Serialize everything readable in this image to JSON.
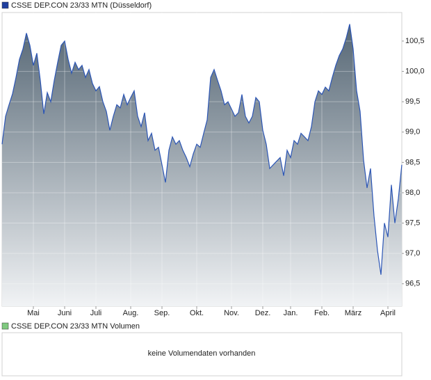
{
  "chart_data": [
    {
      "type": "area",
      "title": "CSSE DEP.CON 23/33 MTN (Düsseldorf)",
      "legend_color": "#1f3f9f",
      "color": "#2b55b5",
      "fill_top": "#566775",
      "fill_bottom": "#f1f3f5",
      "grid": true,
      "values": [
        98.8,
        99.26,
        99.45,
        99.63,
        99.9,
        100.2,
        100.37,
        100.63,
        100.43,
        100.1,
        100.3,
        99.85,
        99.3,
        99.65,
        99.5,
        99.85,
        100.15,
        100.43,
        100.5,
        100.2,
        99.97,
        100.15,
        100.03,
        100.1,
        99.9,
        100.03,
        99.8,
        99.68,
        99.75,
        99.5,
        99.34,
        99.03,
        99.26,
        99.45,
        99.4,
        99.62,
        99.45,
        99.57,
        99.68,
        99.26,
        99.09,
        99.32,
        98.86,
        98.98,
        98.7,
        98.75,
        98.46,
        98.17,
        98.7,
        98.92,
        98.8,
        98.86,
        98.7,
        98.58,
        98.43,
        98.64,
        98.8,
        98.75,
        98.98,
        99.2,
        99.9,
        100.03,
        99.85,
        99.68,
        99.45,
        99.5,
        99.38,
        99.26,
        99.32,
        99.62,
        99.26,
        99.15,
        99.26,
        99.57,
        99.5,
        99.03,
        98.8,
        98.4,
        98.46,
        98.52,
        98.58,
        98.28,
        98.7,
        98.58,
        98.86,
        98.8,
        98.98,
        98.92,
        98.86,
        99.09,
        99.5,
        99.68,
        99.62,
        99.74,
        99.68,
        99.9,
        100.1,
        100.26,
        100.37,
        100.55,
        100.78,
        100.37,
        99.68,
        99.34,
        98.54,
        98.08,
        98.4,
        97.62,
        97.05,
        96.65,
        97.5,
        97.27,
        98.13,
        97.5,
        97.9,
        98.46
      ],
      "xlim": [
        0,
        115
      ],
      "xticks": [
        {
          "value": 9,
          "label": "Mai"
        },
        {
          "value": 18,
          "label": "Juni"
        },
        {
          "value": 27,
          "label": "Juli"
        },
        {
          "value": 37,
          "label": "Aug."
        },
        {
          "value": 46,
          "label": "Sep."
        },
        {
          "value": 56,
          "label": "Okt."
        },
        {
          "value": 66,
          "label": "Nov."
        },
        {
          "value": 75,
          "label": "Dez."
        },
        {
          "value": 83,
          "label": "Jan."
        },
        {
          "value": 92,
          "label": "Feb."
        },
        {
          "value": 101,
          "label": "März"
        },
        {
          "value": 111,
          "label": "April"
        }
      ],
      "ylim": [
        96.13,
        100.97
      ],
      "yticks": [
        {
          "value": 96.5,
          "label": "96,5"
        },
        {
          "value": 97,
          "label": "97,0"
        },
        {
          "value": 97.5,
          "label": "97,5"
        },
        {
          "value": 98,
          "label": "98,0"
        },
        {
          "value": 98.5,
          "label": "98,5"
        },
        {
          "value": 99,
          "label": "99,0"
        },
        {
          "value": 99.5,
          "label": "99,5"
        },
        {
          "value": 100,
          "label": "100,0"
        },
        {
          "value": 100.5,
          "label": "100,5"
        }
      ]
    },
    {
      "type": "volume",
      "title": "CSSE DEP.CON 23/33 MTN Volumen",
      "legend_color": "#7fc97f",
      "message": "keine Volumendaten vorhanden"
    }
  ]
}
